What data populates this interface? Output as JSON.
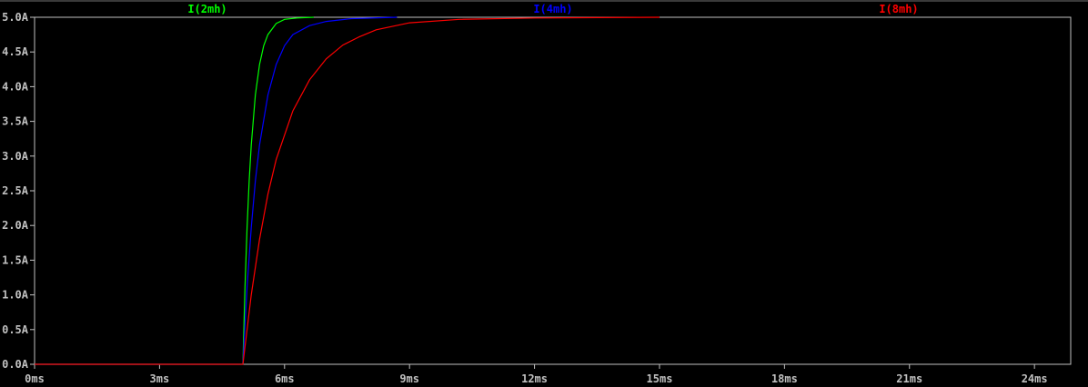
{
  "chart_data": {
    "type": "line",
    "title": "",
    "xlabel": "",
    "ylabel": "",
    "xlim": [
      0,
      24.87
    ],
    "ylim": [
      0,
      5.0
    ],
    "grid": false,
    "legend": "top",
    "x_ticks": [
      "0ms",
      "3ms",
      "6ms",
      "9ms",
      "12ms",
      "15ms",
      "18ms",
      "21ms",
      "24ms"
    ],
    "x_tick_values": [
      0,
      3,
      6,
      9,
      12,
      15,
      18,
      21,
      24
    ],
    "y_ticks": [
      "0.0A",
      "0.5A",
      "1.0A",
      "1.5A",
      "2.0A",
      "2.5A",
      "3.0A",
      "3.5A",
      "4.0A",
      "4.5A",
      "5.0A"
    ],
    "y_tick_values": [
      0,
      0.5,
      1,
      1.5,
      2,
      2.5,
      3,
      3.5,
      4,
      4.5,
      5
    ],
    "axis_color": "#c0c0c0",
    "background": "#000000",
    "series": [
      {
        "name": "I(2mh)",
        "color": "#00ff00",
        "x": [
          0,
          5.0,
          5.05,
          5.1,
          5.15,
          5.2,
          5.3,
          5.4,
          5.5,
          5.6,
          5.8,
          6.0,
          6.3,
          6.7
        ],
        "y": [
          0,
          0,
          1.11,
          1.97,
          2.64,
          3.16,
          3.88,
          4.32,
          4.59,
          4.75,
          4.91,
          4.97,
          4.99,
          5.0
        ]
      },
      {
        "name": "I(4mh)",
        "color": "#0000ff",
        "x": [
          0,
          5.0,
          5.1,
          5.2,
          5.3,
          5.4,
          5.6,
          5.8,
          6.0,
          6.2,
          6.6,
          7.0,
          7.6,
          8.7
        ],
        "y": [
          0,
          0,
          1.11,
          1.97,
          2.64,
          3.16,
          3.88,
          4.32,
          4.59,
          4.75,
          4.88,
          4.94,
          4.98,
          5.0
        ]
      },
      {
        "name": "I(8mh)",
        "color": "#ff0000",
        "x": [
          0,
          5.0,
          5.2,
          5.4,
          5.6,
          5.8,
          6.2,
          6.6,
          7.0,
          7.4,
          7.8,
          8.2,
          9.0,
          10.2,
          12.0,
          15.0
        ],
        "y": [
          0,
          0,
          1.0,
          1.8,
          2.45,
          2.95,
          3.65,
          4.1,
          4.4,
          4.6,
          4.72,
          4.82,
          4.92,
          4.97,
          4.99,
          5.0
        ]
      }
    ]
  }
}
